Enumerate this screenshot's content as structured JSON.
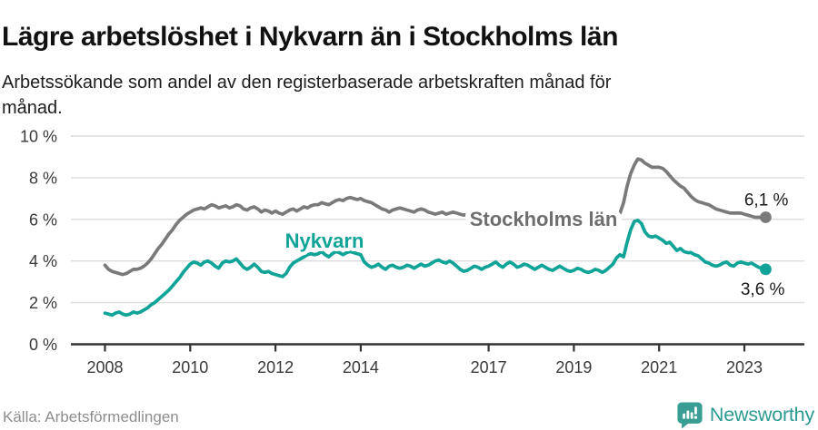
{
  "header": {
    "title": "Lägre arbetslöshet i Nykvarn än i Stockholms län",
    "subtitle": "Arbetssökande som andel av den registerbaserade arbetskraften månad för månad."
  },
  "footer": {
    "source": "Källa: Arbetsförmedlingen",
    "brand": "Newsworthy"
  },
  "colors": {
    "nykvarn_teal": "#10a398",
    "stockholm_gray": "#7a7a7a",
    "gridline": "#dcdcdc",
    "axis": "#333333",
    "axis_text": "#3a3a3a",
    "annotation_text": "#1a1a1a",
    "brand_teal": "#2c9a91"
  },
  "chart_data": {
    "type": "line",
    "title": "Lägre arbetslöshet i Nykvarn än i Stockholms län",
    "subtitle": "Arbetssökande som andel av den registerbaserade arbetskraften månad för månad.",
    "x_unit": "month",
    "x_start": "2008-01",
    "x_end": "2023-07",
    "ylim": [
      0,
      10
    ],
    "grid": "horizontal",
    "legend_position": "inline-labels",
    "y_ticks": [
      0,
      2,
      4,
      6,
      8,
      10
    ],
    "y_tick_labels": [
      "0 %",
      "2 %",
      "4 %",
      "6 %",
      "8 %",
      "10 %"
    ],
    "x_ticks": [
      2008,
      2010,
      2012,
      2014,
      2017,
      2019,
      2021,
      2023
    ],
    "x_tick_labels": [
      "2008",
      "2010",
      "2012",
      "2014",
      "2017",
      "2019",
      "2021",
      "2023"
    ],
    "series": [
      {
        "name": "Stockholms län",
        "color": "#7a7a7a",
        "end_label": "6,1 %",
        "end_value": 6.1,
        "values": [
          3.8,
          3.6,
          3.5,
          3.45,
          3.4,
          3.35,
          3.4,
          3.5,
          3.6,
          3.6,
          3.65,
          3.75,
          3.9,
          4.1,
          4.35,
          4.6,
          4.8,
          5.05,
          5.3,
          5.5,
          5.75,
          5.95,
          6.1,
          6.25,
          6.35,
          6.45,
          6.5,
          6.55,
          6.5,
          6.6,
          6.7,
          6.65,
          6.55,
          6.6,
          6.65,
          6.55,
          6.6,
          6.7,
          6.65,
          6.5,
          6.45,
          6.55,
          6.6,
          6.5,
          6.35,
          6.45,
          6.4,
          6.3,
          6.4,
          6.3,
          6.25,
          6.35,
          6.45,
          6.5,
          6.4,
          6.5,
          6.6,
          6.55,
          6.65,
          6.7,
          6.7,
          6.8,
          6.75,
          6.7,
          6.8,
          6.9,
          6.95,
          6.9,
          7.0,
          7.05,
          7.0,
          6.95,
          7.0,
          6.9,
          6.85,
          6.8,
          6.7,
          6.6,
          6.5,
          6.45,
          6.35,
          6.45,
          6.5,
          6.55,
          6.5,
          6.45,
          6.4,
          6.35,
          6.45,
          6.5,
          6.45,
          6.35,
          6.3,
          6.25,
          6.3,
          6.35,
          6.25,
          6.3,
          6.35,
          6.3,
          6.25,
          6.2,
          6.25,
          6.3,
          6.25,
          6.2,
          6.15,
          6.2,
          6.2,
          6.15,
          6.1,
          6.15,
          6.2,
          6.15,
          6.1,
          6.1,
          6.15,
          6.1,
          6.05,
          6.1,
          6.1,
          6.05,
          6.0,
          6.05,
          6.1,
          6.05,
          6.0,
          6.0,
          6.05,
          6.0,
          6.0,
          6.05,
          6.0,
          6.0,
          6.05,
          6.0,
          6.0,
          6.05,
          6.1,
          6.05,
          6.0,
          6.05,
          6.1,
          6.15,
          6.2,
          6.3,
          6.8,
          7.6,
          8.2,
          8.6,
          8.9,
          8.85,
          8.7,
          8.6,
          8.5,
          8.5,
          8.5,
          8.45,
          8.3,
          8.1,
          7.9,
          7.75,
          7.6,
          7.5,
          7.3,
          7.1,
          6.95,
          6.85,
          6.8,
          6.75,
          6.7,
          6.6,
          6.5,
          6.45,
          6.4,
          6.35,
          6.3,
          6.3,
          6.3,
          6.3,
          6.25,
          6.2,
          6.15,
          6.1,
          6.1,
          6.1,
          6.1
        ]
      },
      {
        "name": "Nykvarn",
        "color": "#10a398",
        "end_label": "3,6 %",
        "end_value": 3.6,
        "values": [
          1.5,
          1.45,
          1.4,
          1.5,
          1.55,
          1.45,
          1.4,
          1.45,
          1.55,
          1.5,
          1.55,
          1.65,
          1.75,
          1.9,
          2.0,
          2.15,
          2.3,
          2.45,
          2.6,
          2.8,
          3.0,
          3.2,
          3.45,
          3.65,
          3.85,
          3.95,
          3.9,
          3.8,
          3.95,
          4.0,
          3.9,
          3.75,
          3.65,
          3.9,
          4.0,
          3.95,
          4.0,
          4.1,
          3.9,
          3.7,
          3.6,
          3.7,
          3.85,
          3.7,
          3.5,
          3.45,
          3.5,
          3.4,
          3.35,
          3.3,
          3.25,
          3.4,
          3.7,
          3.9,
          4.0,
          4.1,
          4.2,
          4.3,
          4.35,
          4.3,
          4.35,
          4.45,
          4.3,
          4.2,
          4.35,
          4.45,
          4.4,
          4.3,
          4.4,
          4.45,
          4.4,
          4.35,
          4.3,
          3.95,
          3.8,
          3.7,
          3.75,
          3.85,
          3.7,
          3.6,
          3.75,
          3.8,
          3.7,
          3.65,
          3.7,
          3.8,
          3.75,
          3.65,
          3.75,
          3.85,
          3.75,
          3.8,
          3.9,
          4.0,
          4.05,
          3.95,
          3.9,
          4.0,
          3.9,
          3.75,
          3.6,
          3.5,
          3.55,
          3.65,
          3.75,
          3.7,
          3.6,
          3.7,
          3.75,
          3.85,
          3.95,
          3.8,
          3.7,
          3.85,
          3.95,
          3.85,
          3.7,
          3.75,
          3.85,
          3.8,
          3.7,
          3.6,
          3.7,
          3.8,
          3.7,
          3.6,
          3.55,
          3.65,
          3.75,
          3.65,
          3.55,
          3.5,
          3.55,
          3.65,
          3.6,
          3.5,
          3.45,
          3.5,
          3.6,
          3.55,
          3.45,
          3.55,
          3.7,
          3.85,
          4.15,
          4.3,
          4.2,
          4.9,
          5.5,
          5.9,
          5.95,
          5.8,
          5.4,
          5.2,
          5.15,
          5.2,
          5.1,
          5.0,
          4.85,
          4.9,
          4.7,
          4.5,
          4.6,
          4.45,
          4.4,
          4.4,
          4.3,
          4.25,
          4.1,
          3.95,
          3.9,
          3.8,
          3.75,
          3.8,
          3.9,
          3.95,
          3.8,
          3.75,
          3.9,
          3.95,
          3.9,
          3.85,
          3.9,
          3.8,
          3.7,
          3.65,
          3.6
        ]
      }
    ]
  }
}
